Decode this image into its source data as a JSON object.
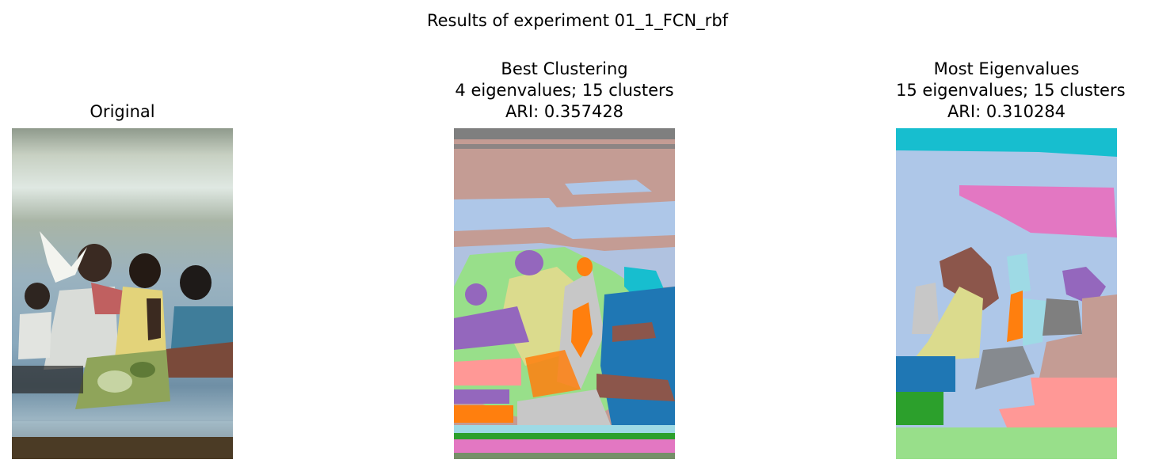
{
  "figure": {
    "suptitle": "Results of experiment 01_1_FCN_rbf"
  },
  "panels": [
    {
      "title_lines": [
        "Original"
      ]
    },
    {
      "title_lines": [
        "Best Clustering",
        "4 eigenvalues; 15 clusters",
        "ARI: 0.357428"
      ]
    },
    {
      "title_lines": [
        "Most Eigenvalues",
        "15 eigenvalues; 15 clusters",
        "ARI: 0.310284"
      ]
    }
  ],
  "colors": {
    "tab_blue": "#1f77b4",
    "tab_lightblue": "#aec7e8",
    "tab_orange": "#ff7f0e",
    "tab_green": "#2ca02c",
    "tab_lightgreen": "#98df8a",
    "tab_pink": "#ff9896",
    "tab_purple": "#9467bd",
    "tab_brown": "#8c564b",
    "tab_rosybrown": "#c49c94",
    "tab_magenta": "#e377c2",
    "tab_gray": "#7f7f7f",
    "tab_lightgray": "#c7c7c7",
    "tab_olive": "#dbdb8d",
    "tab_cyan": "#17becf",
    "tab_lightcyan": "#9edae5"
  }
}
